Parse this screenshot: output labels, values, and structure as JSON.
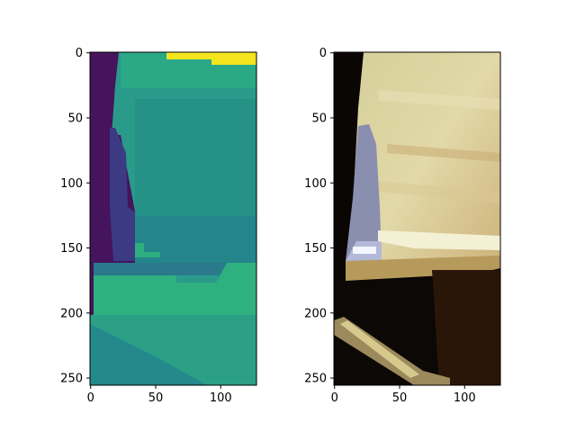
{
  "figure": {
    "panels": [
      {
        "name": "depth-map",
        "colormap": "viridis",
        "image_width": 128,
        "image_height": 256,
        "x_ticks": [
          0,
          50,
          100
        ],
        "y_ticks": [
          0,
          50,
          100,
          150,
          200,
          250
        ]
      },
      {
        "name": "rgb-image",
        "colormap": "rgb",
        "image_width": 128,
        "image_height": 256,
        "x_ticks": [
          0,
          50,
          100
        ],
        "y_ticks": [
          0,
          50,
          100,
          150,
          200,
          250
        ]
      }
    ]
  }
}
